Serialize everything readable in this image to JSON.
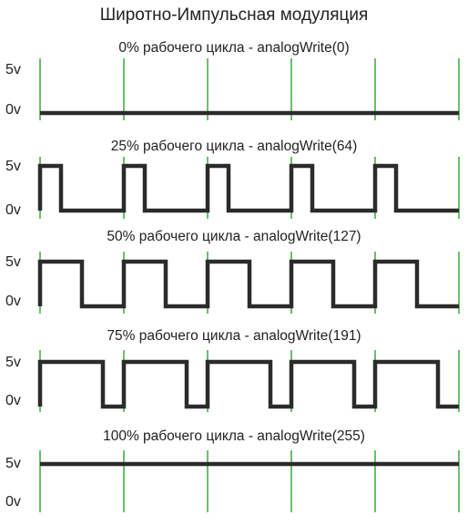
{
  "title": "Широтно-Импульсная модуляция",
  "grid_color": "#3aa83a",
  "signal_color": "#2b2b2b",
  "panels": [
    {
      "caption": "0% рабочего цикла - analogWrite(0)",
      "label_high": "5v",
      "label_low": "0v",
      "duty": 0
    },
    {
      "caption": "25% рабочего цикла - analogWrite(64)",
      "label_high": "5v",
      "label_low": "0v",
      "duty": 0.25
    },
    {
      "caption": "50% рабочего цикла - analogWrite(127)",
      "label_high": "5v",
      "label_low": "0v",
      "duty": 0.5
    },
    {
      "caption": "75% рабочего цикла - analogWrite(191)",
      "label_high": "5v",
      "label_low": "0v",
      "duty": 0.75
    },
    {
      "caption": "100% рабочего цикла - analogWrite(255)",
      "label_high": "5v",
      "label_low": "0v",
      "duty": 1
    }
  ]
}
